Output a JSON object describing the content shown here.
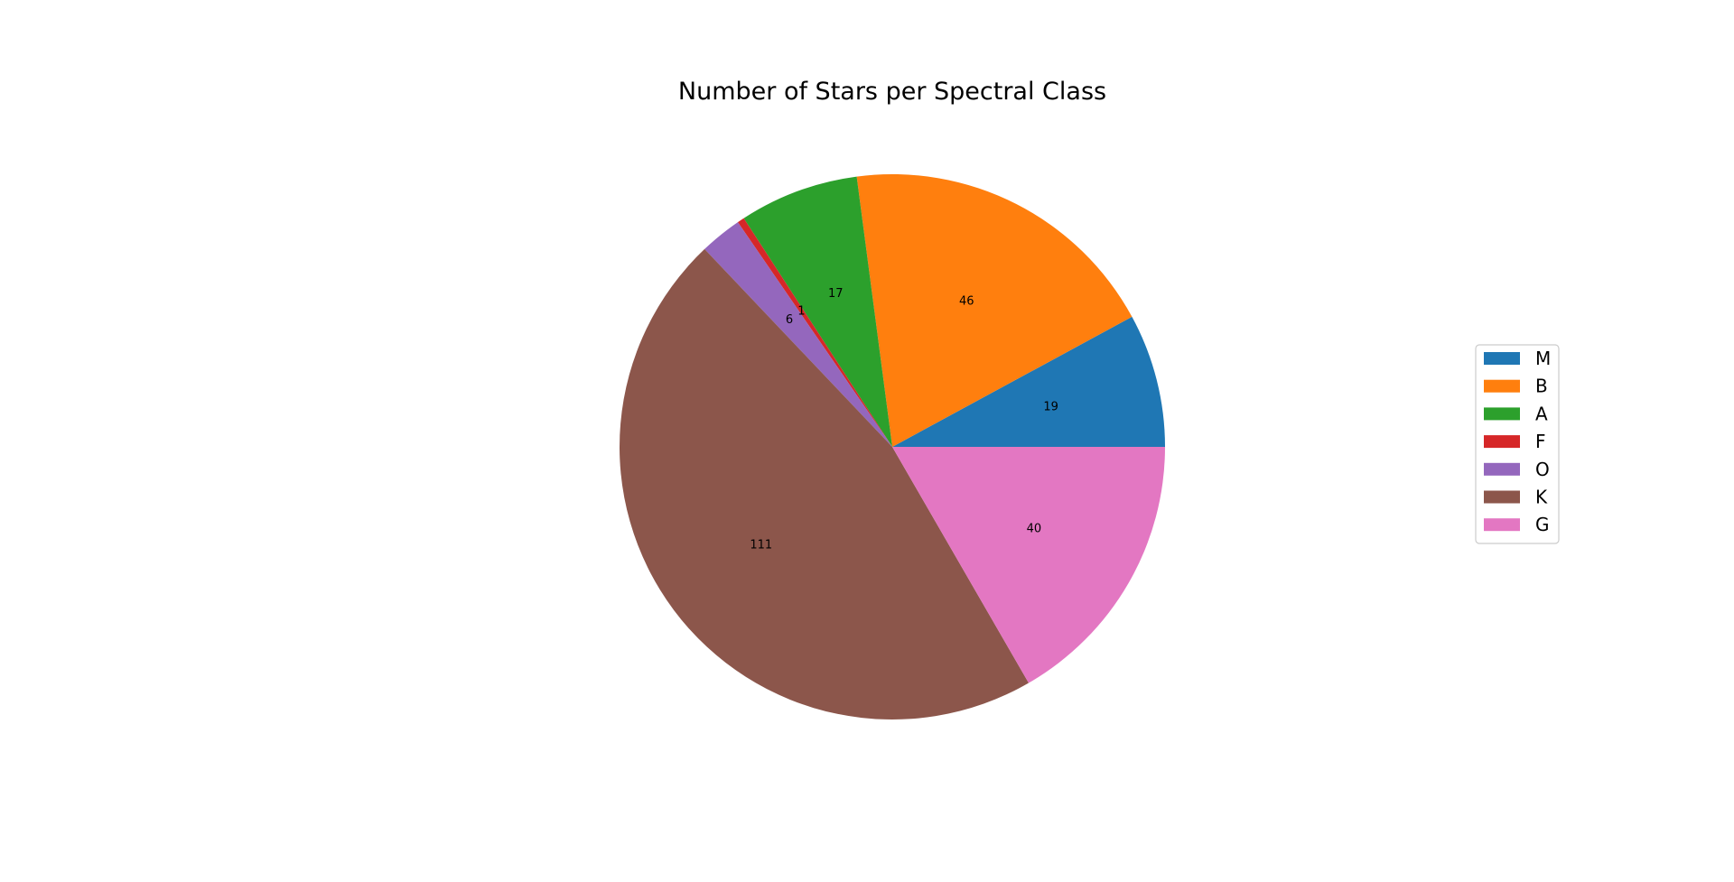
{
  "chart_data": {
    "type": "pie",
    "title": "Number of Stars per Spectral Class",
    "categories": [
      "M",
      "B",
      "A",
      "F",
      "O",
      "K",
      "G"
    ],
    "values": [
      19,
      46,
      17,
      1,
      6,
      111,
      40
    ],
    "slice_labels": [
      "19",
      "46",
      "17",
      "1",
      "6",
      "111",
      "40"
    ],
    "colors": [
      "#1f77b4",
      "#ff7f0e",
      "#2ca02c",
      "#d62728",
      "#9467bd",
      "#8c564b",
      "#e377c2"
    ],
    "start_angle_deg": 0,
    "direction": "counterclockwise",
    "legend_position": "right",
    "legend_entries": [
      "M",
      "B",
      "A",
      "F",
      "O",
      "K",
      "G"
    ]
  }
}
